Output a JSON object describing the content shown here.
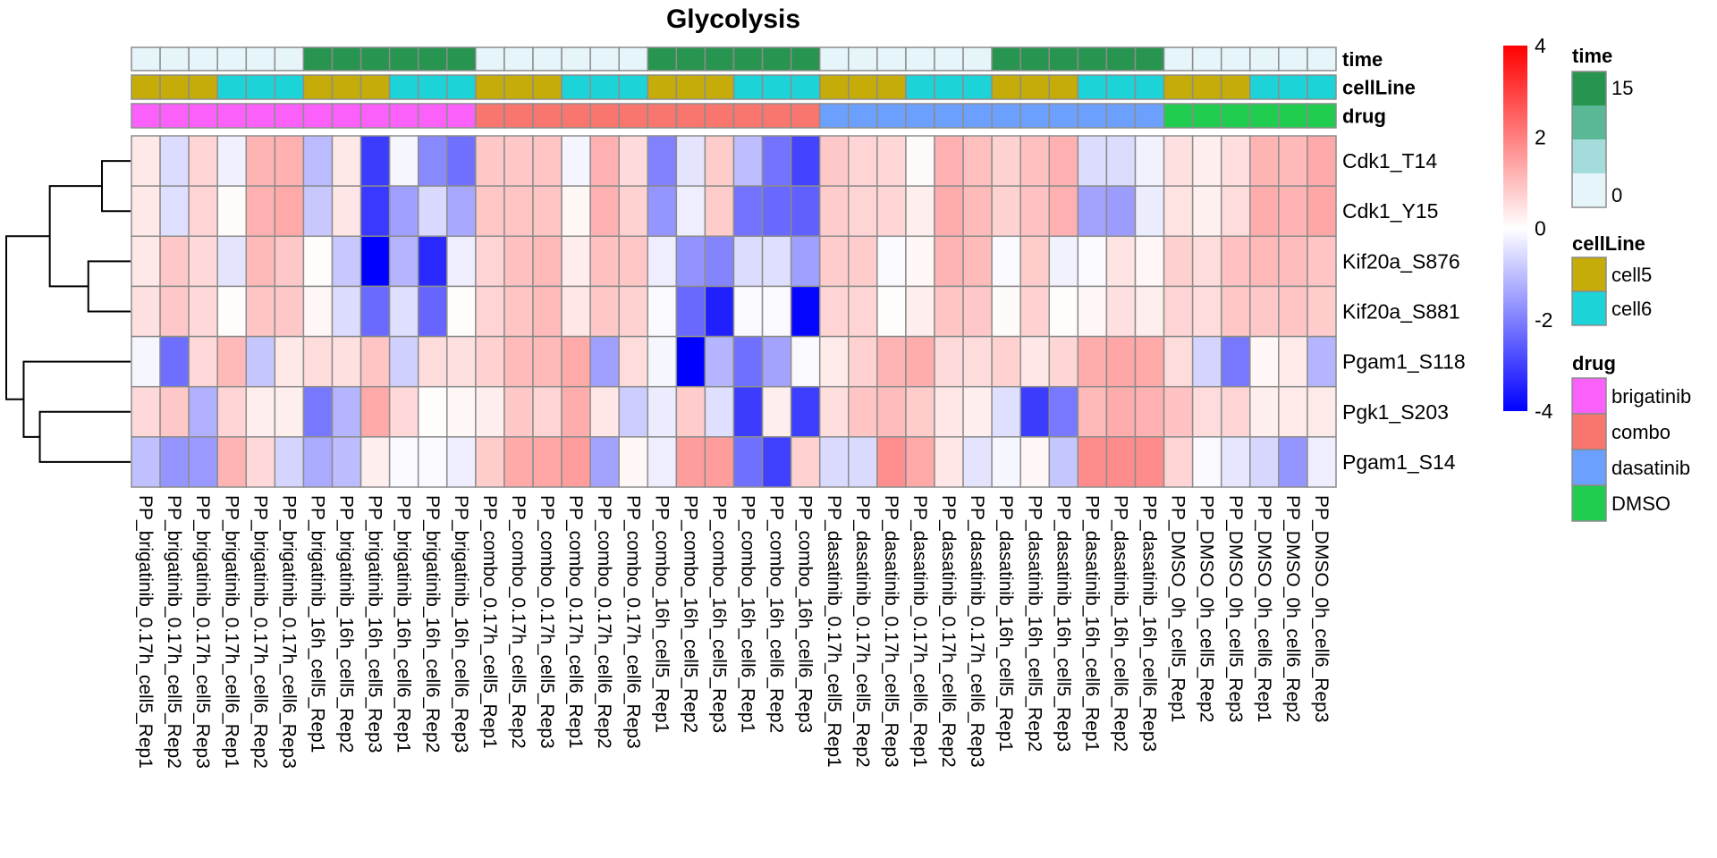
{
  "chart_data": {
    "type": "heatmap",
    "title": "Glycolysis",
    "xlabel": "",
    "ylabel": "",
    "rows": [
      "Cdk1_T14",
      "Cdk1_Y15",
      "Kif20a_S876",
      "Kif20a_S881",
      "Pgam1_S118",
      "Pgk1_S203",
      "Pgam1_S14"
    ],
    "columns": [
      "PP_brigatinib_0.17h_cell5_Rep1",
      "PP_brigatinib_0.17h_cell5_Rep2",
      "PP_brigatinib_0.17h_cell5_Rep3",
      "PP_brigatinib_0.17h_cell6_Rep1",
      "PP_brigatinib_0.17h_cell6_Rep2",
      "PP_brigatinib_0.17h_cell6_Rep3",
      "PP_brigatinib_16h_cell5_Rep1",
      "PP_brigatinib_16h_cell5_Rep2",
      "PP_brigatinib_16h_cell5_Rep3",
      "PP_brigatinib_16h_cell6_Rep1",
      "PP_brigatinib_16h_cell6_Rep2",
      "PP_brigatinib_16h_cell6_Rep3",
      "PP_combo_0.17h_cell5_Rep1",
      "PP_combo_0.17h_cell5_Rep2",
      "PP_combo_0.17h_cell5_Rep3",
      "PP_combo_0.17h_cell6_Rep1",
      "PP_combo_0.17h_cell6_Rep2",
      "PP_combo_0.17h_cell6_Rep3",
      "PP_combo_16h_cell5_Rep1",
      "PP_combo_16h_cell5_Rep2",
      "PP_combo_16h_cell5_Rep3",
      "PP_combo_16h_cell6_Rep1",
      "PP_combo_16h_cell6_Rep2",
      "PP_combo_16h_cell6_Rep3",
      "PP_dasatinib_0.17h_cell5_Rep1",
      "PP_dasatinib_0.17h_cell5_Rep2",
      "PP_dasatinib_0.17h_cell5_Rep3",
      "PP_dasatinib_0.17h_cell6_Rep1",
      "PP_dasatinib_0.17h_cell6_Rep2",
      "PP_dasatinib_0.17h_cell6_Rep3",
      "PP_dasatinib_16h_cell5_Rep1",
      "PP_dasatinib_16h_cell5_Rep2",
      "PP_dasatinib_16h_cell5_Rep3",
      "PP_dasatinib_16h_cell6_Rep1",
      "PP_dasatinib_16h_cell6_Rep2",
      "PP_dasatinib_16h_cell6_Rep3",
      "PP_DMSO_0h_cell5_Rep1",
      "PP_DMSO_0h_cell5_Rep2",
      "PP_DMSO_0h_cell5_Rep3",
      "PP_DMSO_0h_cell6_Rep1",
      "PP_DMSO_0h_cell6_Rep2",
      "PP_DMSO_0h_cell6_Rep3"
    ],
    "values": [
      [
        0.36,
        -0.55,
        0.67,
        -0.24,
        1.18,
        1.24,
        -1.06,
        0.36,
        -3.06,
        -0.14,
        -1.86,
        -2.24,
        0.86,
        0.86,
        0.92,
        -0.16,
        1.24,
        0.58,
        -1.96,
        -0.42,
        0.8,
        -1.04,
        -2.2,
        -2.94,
        0.86,
        0.67,
        0.62,
        0.08,
        1.24,
        1.0,
        0.7,
        0.99,
        1.24,
        -0.55,
        -0.55,
        -0.2,
        0.48,
        0.27,
        0.52,
        1.18,
        1.1,
        1.33
      ],
      [
        0.36,
        -0.5,
        0.67,
        0.06,
        1.22,
        1.35,
        -0.86,
        0.4,
        -3.1,
        -1.5,
        -0.6,
        -1.37,
        0.9,
        0.92,
        0.92,
        0.14,
        1.24,
        0.7,
        -1.67,
        -0.27,
        0.8,
        -2.2,
        -2.35,
        -2.5,
        0.8,
        0.67,
        0.64,
        0.27,
        1.3,
        1.08,
        0.7,
        0.97,
        1.24,
        -1.44,
        -1.55,
        -0.3,
        0.45,
        0.23,
        0.55,
        1.3,
        1.2,
        1.4
      ],
      [
        0.36,
        0.86,
        0.6,
        -0.42,
        1.1,
        0.86,
        0.04,
        -0.86,
        -4.0,
        -1.18,
        -3.35,
        -0.27,
        0.67,
        0.99,
        1.1,
        0.3,
        0.99,
        0.9,
        -0.27,
        -1.7,
        -1.93,
        -0.55,
        -0.5,
        -1.5,
        0.8,
        0.8,
        -0.1,
        0.14,
        1.18,
        1.08,
        -0.1,
        0.8,
        -0.2,
        -0.1,
        0.42,
        0.14,
        0.73,
        0.55,
        0.97,
        1.1,
        1.05,
        0.92
      ],
      [
        0.48,
        0.86,
        0.6,
        0.04,
        0.92,
        0.86,
        0.14,
        -0.55,
        -2.34,
        -0.5,
        -2.4,
        0.04,
        0.67,
        0.92,
        1.08,
        0.38,
        0.86,
        0.7,
        -0.1,
        -2.36,
        -3.5,
        -0.1,
        -0.1,
        -3.9,
        0.67,
        0.67,
        0.04,
        0.27,
        0.92,
        0.86,
        0.08,
        0.72,
        0.04,
        0.14,
        0.48,
        0.27,
        0.67,
        0.55,
        0.9,
        0.86,
        0.92,
        0.8
      ],
      [
        -0.14,
        -2.27,
        0.6,
        1.1,
        -0.9,
        0.36,
        0.55,
        0.48,
        0.92,
        -0.73,
        0.55,
        0.48,
        0.72,
        1.08,
        1.1,
        1.35,
        -1.5,
        0.55,
        -0.14,
        -4.0,
        -1.18,
        -2.24,
        -1.44,
        -0.1,
        0.33,
        0.72,
        1.18,
        1.3,
        0.58,
        0.55,
        0.72,
        0.38,
        0.64,
        1.3,
        1.4,
        1.35,
        0.55,
        -0.67,
        -2.12,
        0.14,
        0.33,
        -1.18
      ],
      [
        0.6,
        0.86,
        -1.24,
        0.67,
        0.27,
        0.27,
        -2.12,
        -1.18,
        1.35,
        0.6,
        0.04,
        0.14,
        0.27,
        0.86,
        0.67,
        1.3,
        0.38,
        -0.8,
        -0.3,
        0.8,
        -0.5,
        -3.06,
        0.27,
        -3.03,
        0.52,
        0.92,
        1.05,
        0.8,
        0.38,
        0.27,
        -0.5,
        -3.06,
        -2.12,
        1.1,
        1.3,
        1.24,
        0.97,
        0.55,
        0.67,
        0.27,
        0.33,
        0.33
      ],
      [
        -0.99,
        -1.67,
        -1.6,
        1.18,
        0.6,
        -0.67,
        -1.33,
        -1.05,
        0.27,
        -0.1,
        -0.1,
        -0.27,
        0.8,
        1.35,
        1.4,
        1.55,
        -1.44,
        0.14,
        -0.27,
        1.55,
        1.55,
        -2.24,
        -3.0,
        0.72,
        -0.58,
        -0.58,
        1.75,
        1.35,
        0.38,
        -0.42,
        -0.14,
        0.14,
        -0.9,
        1.8,
        1.8,
        1.8,
        0.67,
        -0.1,
        -0.4,
        -0.64,
        -1.67,
        -0.27
      ]
    ],
    "color_scale": {
      "min": -4,
      "max": 4,
      "low_color": "#0000FF",
      "mid_color": "#FFFFFF",
      "high_color": "#FF0000",
      "ticks": [
        4,
        2,
        0,
        -2,
        -4
      ]
    },
    "annotations": {
      "order": [
        "time",
        "cellLine",
        "drug"
      ],
      "time": [
        "0",
        "0",
        "0",
        "0",
        "0",
        "0",
        "16",
        "16",
        "16",
        "16",
        "16",
        "16",
        "0",
        "0",
        "0",
        "0",
        "0",
        "0",
        "16",
        "16",
        "16",
        "16",
        "16",
        "16",
        "0",
        "0",
        "0",
        "0",
        "0",
        "0",
        "16",
        "16",
        "16",
        "16",
        "16",
        "16",
        "0",
        "0",
        "0",
        "0",
        "0",
        "0"
      ],
      "cellLine": [
        "cell5",
        "cell5",
        "cell5",
        "cell6",
        "cell6",
        "cell6",
        "cell5",
        "cell5",
        "cell5",
        "cell6",
        "cell6",
        "cell6",
        "cell5",
        "cell5",
        "cell5",
        "cell6",
        "cell6",
        "cell6",
        "cell5",
        "cell5",
        "cell5",
        "cell6",
        "cell6",
        "cell6",
        "cell5",
        "cell5",
        "cell5",
        "cell6",
        "cell6",
        "cell6",
        "cell5",
        "cell5",
        "cell5",
        "cell6",
        "cell6",
        "cell6",
        "cell5",
        "cell5",
        "cell5",
        "cell6",
        "cell6",
        "cell6"
      ],
      "drug": [
        "brigatinib",
        "brigatinib",
        "brigatinib",
        "brigatinib",
        "brigatinib",
        "brigatinib",
        "brigatinib",
        "brigatinib",
        "brigatinib",
        "brigatinib",
        "brigatinib",
        "brigatinib",
        "combo",
        "combo",
        "combo",
        "combo",
        "combo",
        "combo",
        "combo",
        "combo",
        "combo",
        "combo",
        "combo",
        "combo",
        "dasatinib",
        "dasatinib",
        "dasatinib",
        "dasatinib",
        "dasatinib",
        "dasatinib",
        "dasatinib",
        "dasatinib",
        "dasatinib",
        "dasatinib",
        "dasatinib",
        "dasatinib",
        "DMSO",
        "DMSO",
        "DMSO",
        "DMSO",
        "DMSO",
        "DMSO"
      ]
    },
    "row_dendrogram": {
      "merges": [
        {
          "id": "a",
          "left": "Cdk1_T14",
          "right": "Cdk1_Y15",
          "height": 0.23
        },
        {
          "id": "b",
          "left": "Kif20a_S876",
          "right": "Kif20a_S881",
          "height": 0.34
        },
        {
          "id": "c",
          "left": "a",
          "right": "b",
          "height": 0.65
        },
        {
          "id": "d",
          "left": "Pgk1_S203",
          "right": "Pgam1_S14",
          "height": 0.73
        },
        {
          "id": "e",
          "left": "Pgam1_S118",
          "right": "d",
          "height": 0.86
        },
        {
          "id": "root",
          "left": "c",
          "right": "e",
          "height": 1.0
        }
      ]
    },
    "legends": [
      {
        "title": "time",
        "type": "continuous",
        "labels": [
          "15",
          "0"
        ],
        "colors": [
          "#27944F",
          "#5AB896",
          "#A3DCDA",
          "#E5F5F9"
        ],
        "range": [
          0,
          15
        ]
      },
      {
        "title": "cellLine",
        "type": "categorical",
        "labels": [
          "cell5",
          "cell6"
        ],
        "colors": [
          "#C6AC08",
          "#1CD3D8"
        ]
      },
      {
        "title": "drug",
        "type": "categorical",
        "labels": [
          "brigatinib",
          "combo",
          "dasatinib",
          "DMSO"
        ],
        "colors": [
          "#FB61FA",
          "#F8766D",
          "#6CA0FE",
          "#20CD4F"
        ]
      }
    ],
    "annotation_colors": {
      "time": {
        "0": "#E5F5F9",
        "16": "#27944F"
      },
      "cellLine": {
        "cell5": "#C6AC08",
        "cell6": "#1CD3D8"
      },
      "drug": {
        "brigatinib": "#FB61FA",
        "combo": "#F8766D",
        "dasatinib": "#6CA0FE",
        "DMSO": "#20CD4F"
      }
    }
  }
}
